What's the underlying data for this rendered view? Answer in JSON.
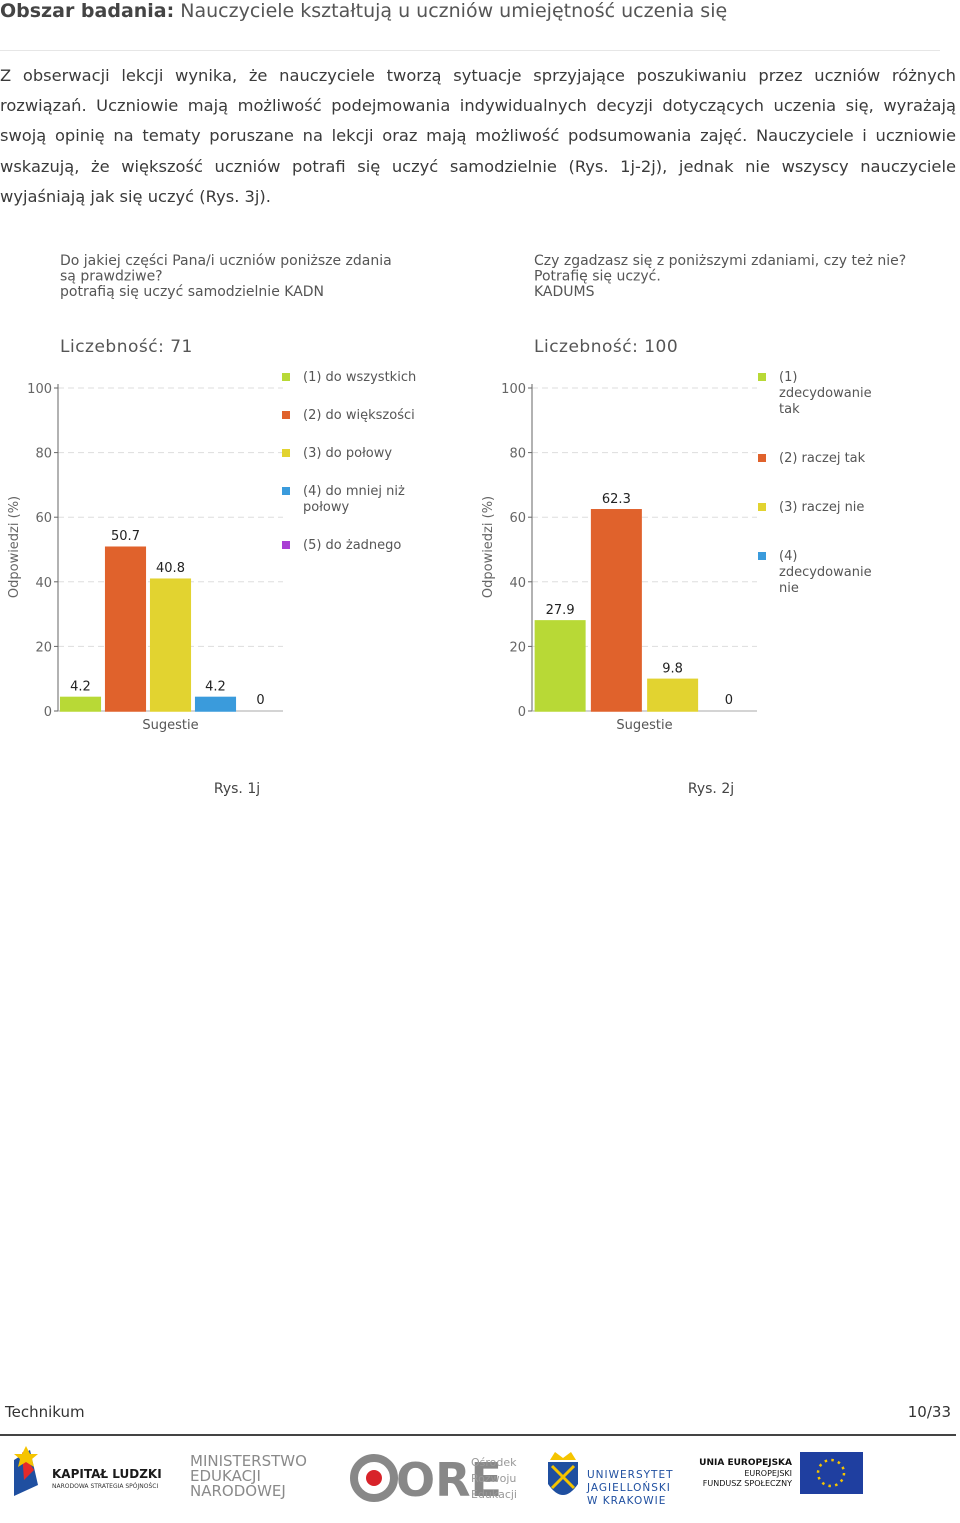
{
  "header": {
    "label": "Obszar badania:",
    "title": "Nauczyciele kształtują u uczniów umiejętność uczenia się"
  },
  "paragraph": "Z obserwacji lekcji wynika, że nauczyciele tworzą sytuacje sprzyjające poszukiwaniu przez uczniów różnych rozwiązań. Uczniowie mają możliwość podejmowania indywidualnych decyzji dotyczących uczenia się, wyrażają swoją opinię na tematy poruszane na lekcji oraz mają możliwość podsumowania zajęć. Nauczyciele i uczniowie wskazują, że większość uczniów potrafi się uczyć samodzielnie (Rys. 1j-2j), jednak nie wszyscy nauczyciele wyjaśniają jak się uczyć (Rys. 3j).",
  "chart_data": [
    {
      "type": "bar",
      "title": [
        "Do jakiej części Pana/i uczniów poniższe zdania",
        "są prawdziwe?",
        "potrafią się uczyć samodzielnie KADN"
      ],
      "count": "Liczebność: 71",
      "y_label": "Odpowiedzi (%)",
      "x_label": "Sugestie",
      "categories": [
        "(1) do wszystkich",
        "(2) do większości",
        "(3) do połowy",
        "(4) do mniej niż połowy",
        "(5) do żadnego"
      ],
      "values": [
        4.2,
        50.7,
        40.8,
        4.2,
        0
      ],
      "colors": [
        "#b8d936",
        "#e0622c",
        "#e2d330",
        "#3a9bdc",
        "#a93fd4"
      ],
      "ylim": [
        0,
        100
      ],
      "yticks": [
        0,
        20,
        40,
        60,
        80,
        100
      ],
      "grid": true,
      "caption": "Rys. 1j"
    },
    {
      "type": "bar",
      "title": [
        "Czy zgadzasz się z poniższymi zdaniami, czy też nie?",
        "Potrafię się uczyć.",
        "KADUMS"
      ],
      "count": "Liczebność: 100",
      "y_label": "Odpowiedzi (%)",
      "x_label": "Sugestie",
      "categories": [
        "(1) zdecydowanie tak",
        "(2) raczej tak",
        "(3) raczej nie",
        "(4) zdecydowanie nie"
      ],
      "values": [
        27.9,
        62.3,
        9.8,
        0
      ],
      "colors": [
        "#b8d936",
        "#e0622c",
        "#e2d330",
        "#3a9bdc"
      ],
      "ylim": [
        0,
        100
      ],
      "yticks": [
        0,
        20,
        40,
        60,
        80,
        100
      ],
      "grid": true,
      "caption": "Rys. 2j"
    }
  ],
  "footer": {
    "left": "Technikum",
    "page": "10/33",
    "logos": {
      "kl_title": "KAPITAŁ LUDZKI",
      "kl_sub": "NARODOWA STRATEGIA SPÓJNOŚCI",
      "men": [
        "MINISTERSTWO",
        "EDUKACJI",
        "NARODOWEJ"
      ],
      "ore": "ORE",
      "ore_sub": [
        "Ośrodek",
        "Rozwoju",
        "Edukacji"
      ],
      "uj": [
        "UNIWERSYTET",
        "JAGIELLOŃSKI",
        "W KRAKOWIE"
      ],
      "ue": [
        "UNIA EUROPEJSKA",
        "EUROPEJSKI",
        "FUNDUSZ SPOŁECZNY"
      ]
    }
  }
}
